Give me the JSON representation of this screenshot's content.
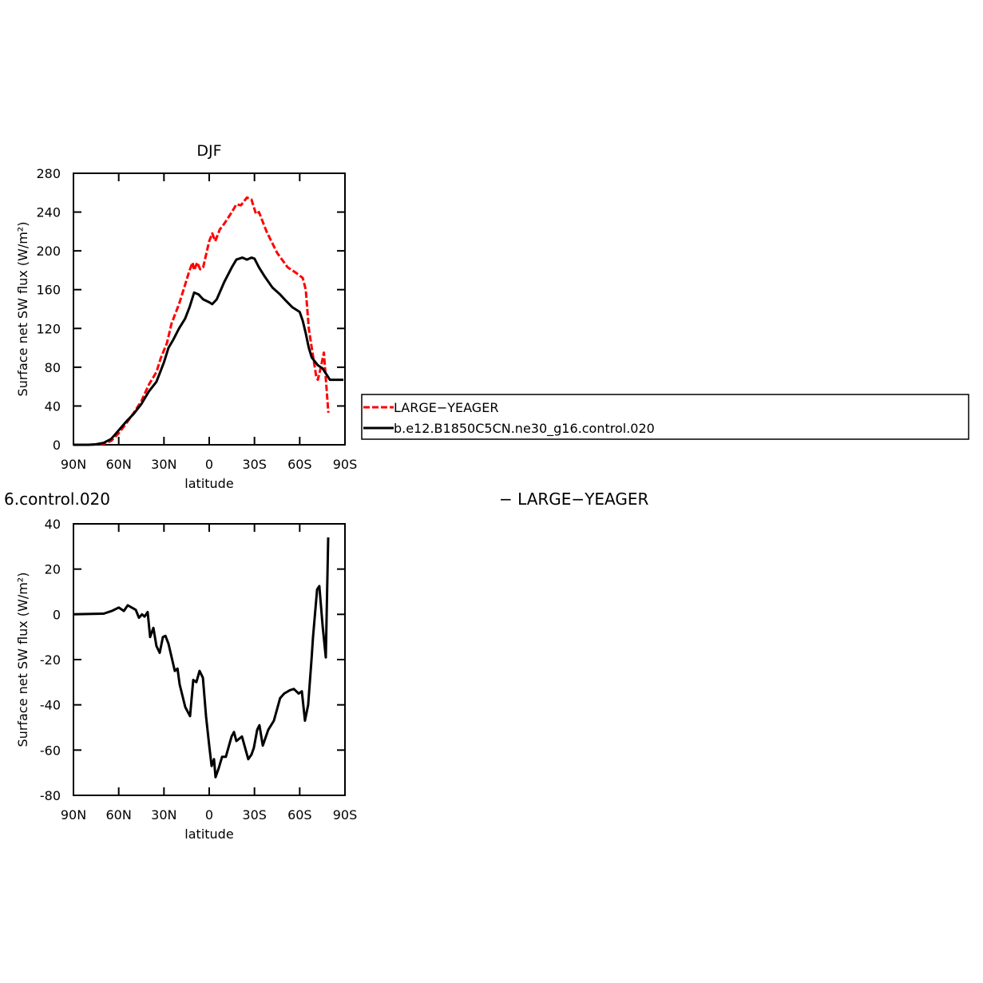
{
  "chart_data": [
    {
      "type": "line",
      "title": "DJF",
      "ylabel": "Surface net SW flux (W/m²)",
      "xlabel": "latitude",
      "xlim": [
        90,
        -90
      ],
      "ylim": [
        0,
        280
      ],
      "xticks": [
        {
          "value": 90,
          "label": "90N"
        },
        {
          "value": 60,
          "label": "60N"
        },
        {
          "value": 30,
          "label": "30N"
        },
        0,
        {
          "value": -30,
          "label": "30S"
        },
        {
          "value": -60,
          "label": "60S"
        },
        {
          "value": -90,
          "label": "90S"
        }
      ],
      "yticks": [
        0,
        40,
        80,
        120,
        160,
        200,
        240,
        280
      ],
      "legend": "right",
      "series": [
        {
          "name": "LARGE−YEAGER",
          "color": "#ff0000",
          "line_style": "dashed",
          "x": [
            90,
            80,
            75,
            70,
            65,
            60,
            55,
            50,
            45,
            40,
            35,
            32,
            28,
            25,
            20,
            16,
            13,
            11,
            10,
            8,
            6,
            4,
            0,
            -2,
            -4,
            -7,
            -10,
            -15,
            -18,
            -21,
            -25,
            -28,
            -31,
            -33,
            -38,
            -45,
            -52,
            -57,
            -62,
            -64,
            -66,
            -68,
            -71,
            -72,
            -74,
            -76,
            -77,
            -79
          ],
          "values": [
            0,
            0,
            0.3,
            1,
            4,
            12,
            22,
            33,
            45,
            62,
            75,
            90,
            105,
            125,
            145,
            165,
            180,
            188,
            180,
            188,
            181,
            183,
            210,
            218,
            210,
            222,
            228,
            240,
            248,
            247,
            255,
            253,
            238,
            240,
            220,
            198,
            183,
            178,
            172,
            160,
            120,
            100,
            70,
            67,
            80,
            95,
            75,
            33
          ]
        },
        {
          "name": "b.e12.B1850C5CN.ne30_g16.control.020",
          "color": "#000000",
          "line_style": "solid",
          "x": [
            90,
            85,
            80,
            75,
            70,
            65,
            60,
            55,
            50,
            45,
            40,
            35,
            30,
            27,
            24,
            20,
            16,
            13,
            10,
            7,
            4,
            0,
            -2,
            -5,
            -10,
            -15,
            -18,
            -22,
            -25,
            -28,
            -30,
            -33,
            -37,
            -42,
            -47,
            -50,
            -55,
            -60,
            -62,
            -64,
            -66,
            -68,
            -72,
            -75,
            -78,
            -80,
            -85,
            -89
          ],
          "values": [
            0,
            0,
            0,
            0.5,
            2,
            6,
            15,
            24,
            32,
            42,
            55,
            65,
            85,
            100,
            108,
            120,
            130,
            142,
            157,
            155,
            150,
            147,
            145,
            150,
            168,
            183,
            191,
            193,
            191,
            193,
            192,
            183,
            173,
            162,
            155,
            150,
            142,
            137,
            128,
            115,
            100,
            90,
            82,
            79,
            72,
            67,
            67,
            67
          ]
        }
      ]
    },
    {
      "type": "line",
      "title": [
        "6.control.020",
        "− LARGE−YEAGER"
      ],
      "ylabel": "Surface net SW flux (W/m²)",
      "xlabel": "latitude",
      "xlim": [
        90,
        -90
      ],
      "ylim": [
        -80,
        40
      ],
      "xticks": [
        {
          "value": 90,
          "label": "90N"
        },
        {
          "value": 60,
          "label": "60N"
        },
        {
          "value": 30,
          "label": "30N"
        },
        0,
        {
          "value": -30,
          "label": "30S"
        },
        {
          "value": -60,
          "label": "60S"
        },
        {
          "value": -90,
          "label": "90S"
        }
      ],
      "yticks": [
        -80,
        -60,
        -40,
        -20,
        0,
        20,
        40
      ],
      "series": [
        {
          "color": "#000000",
          "line_style": "solid",
          "x": [
            90,
            70,
            64.6,
            60,
            56.6,
            54,
            48.7,
            46.6,
            44.5,
            42.9,
            40.8,
            39.2,
            37,
            35,
            32.8,
            30.7,
            29,
            27,
            22.8,
            21,
            19.6,
            15.9,
            12.7,
            10.6,
            8.5,
            6.4,
            4.2,
            2.1,
            0,
            -1.6,
            -3.2,
            -4.2,
            -6.3,
            -8.5,
            -11,
            -14.8,
            -16.4,
            -18,
            -21.7,
            -25.9,
            -28,
            -29.6,
            -31.8,
            -33.3,
            -35.5,
            -39.2,
            -42.9,
            -47,
            -49.7,
            -53.5,
            -56.1,
            -59.3,
            -61.4,
            -63.5,
            -65.6,
            -67.8,
            -68.8,
            -71.5,
            -73,
            -75.2,
            -77.3,
            -78.9
          ],
          "values": [
            0,
            0.3,
            1.5,
            3,
            1.5,
            4,
            2,
            -1.5,
            0,
            -1,
            1,
            -10,
            -6,
            -14,
            -17,
            -10,
            -9.5,
            -13,
            -25,
            -24,
            -31,
            -41,
            -45,
            -29,
            -30,
            -25,
            -28,
            -45,
            -58,
            -67,
            -64,
            -72,
            -68,
            -63,
            -63,
            -54,
            -52,
            -56,
            -54,
            -64,
            -62,
            -59,
            -51,
            -49,
            -58,
            -51,
            -47,
            -37,
            -35,
            -33.5,
            -33,
            -35,
            -34,
            -47,
            -40,
            -20,
            -10,
            11,
            12.5,
            -5,
            -19,
            34
          ]
        }
      ]
    }
  ]
}
